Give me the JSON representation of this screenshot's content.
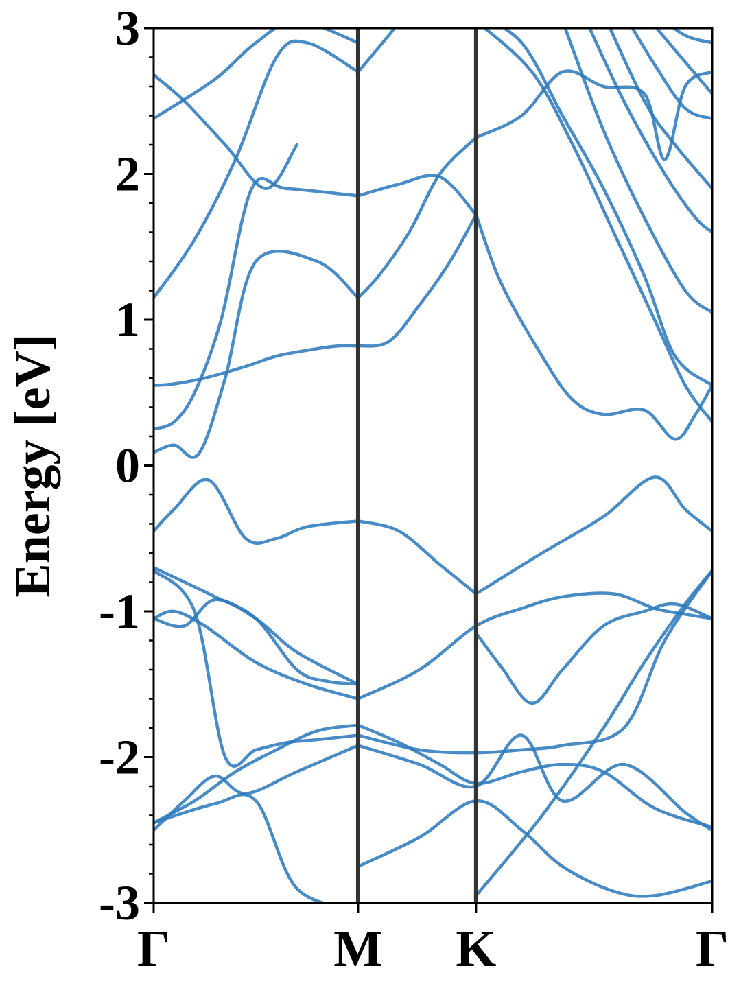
{
  "chart_data": {
    "type": "line",
    "ylabel": "Energy [eV]",
    "xlabel": "",
    "ylim": [
      -3,
      3
    ],
    "yticks": [
      "3",
      "2",
      "1",
      "0",
      "-1",
      "-2",
      "-3"
    ],
    "ytick_values": [
      3,
      2,
      1,
      0,
      -1,
      -2,
      -3
    ],
    "minor_ytick_step": 0.2,
    "kpoint_labels": [
      "Γ",
      "M",
      "K",
      "Γ"
    ],
    "kpoint_positions": [
      0,
      1,
      1.577,
      2.732
    ],
    "grid": false,
    "colors": {
      "bands": "#2f7bbd",
      "kpath_lines": "#333333",
      "axes": "#000000"
    },
    "series": [
      {
        "x": [
          0,
          0.1,
          0.27,
          0.45,
          0.6,
          0.75,
          1.0
        ],
        "values": [
          -0.45,
          -0.3,
          -0.1,
          -0.5,
          -0.5,
          -0.42,
          -0.38
        ]
      },
      {
        "x": [
          1.0,
          1.2,
          1.4,
          1.577
        ],
        "values": [
          -0.38,
          -0.45,
          -0.68,
          -0.88
        ]
      },
      {
        "x": [
          1.577,
          1.9,
          2.2,
          2.45,
          2.6,
          2.732
        ],
        "values": [
          -0.88,
          -0.6,
          -0.35,
          -0.08,
          -0.3,
          -0.45
        ]
      },
      {
        "x": [
          0,
          0.1,
          0.25,
          0.45,
          0.6,
          0.75,
          0.9,
          1.0
        ],
        "values": [
          0.55,
          0.56,
          0.6,
          0.68,
          0.75,
          0.79,
          0.82,
          0.82
        ]
      },
      {
        "x": [
          1.0,
          1.15,
          1.3,
          1.45,
          1.577
        ],
        "values": [
          0.82,
          0.85,
          1.1,
          1.4,
          1.72
        ]
      },
      {
        "x": [
          0,
          0.1,
          0.22,
          0.35,
          0.5,
          0.8,
          1.0
        ],
        "values": [
          0.09,
          0.14,
          0.08,
          0.6,
          1.4,
          1.4,
          1.15
        ]
      },
      {
        "x": [
          0,
          0.1,
          0.2,
          0.33,
          0.48,
          0.65,
          1.0
        ],
        "values": [
          0.25,
          0.3,
          0.5,
          1.0,
          1.9,
          1.9,
          1.85
        ]
      },
      {
        "x": [
          1.0,
          1.2,
          1.4,
          1.577
        ],
        "values": [
          1.85,
          1.93,
          1.98,
          1.72
        ]
      },
      {
        "x": [
          1.0,
          1.1,
          1.25,
          1.4,
          1.577
        ],
        "values": [
          1.15,
          1.3,
          1.6,
          2.0,
          2.25
        ]
      },
      {
        "x": [
          1.577,
          1.8,
          2.0,
          2.2,
          2.4,
          2.5,
          2.6,
          2.732
        ],
        "values": [
          2.25,
          2.4,
          2.7,
          2.6,
          2.55,
          2.1,
          2.6,
          2.7
        ]
      },
      {
        "x": [
          1.577,
          1.7,
          1.9,
          2.05,
          2.2,
          2.4,
          2.55,
          2.65,
          2.732
        ],
        "values": [
          1.72,
          1.25,
          0.75,
          0.45,
          0.35,
          0.38,
          0.18,
          0.35,
          0.55
        ]
      },
      {
        "x": [
          0,
          0.3,
          0.5,
          0.7,
          0.85,
          1.0
        ],
        "values": [
          -0.7,
          -0.9,
          -1.05,
          -1.4,
          -1.48,
          -1.5
        ]
      },
      {
        "x": [
          0,
          0.15,
          0.3,
          0.5,
          0.7,
          1.0
        ],
        "values": [
          -1.05,
          -1.1,
          -0.92,
          -1.05,
          -1.28,
          -1.5
        ]
      },
      {
        "x": [
          0,
          0.1,
          0.25,
          0.5,
          0.75,
          1.0
        ],
        "values": [
          -1.05,
          -1.0,
          -1.1,
          -1.35,
          -1.5,
          -1.6
        ]
      },
      {
        "x": [
          1.0,
          1.3,
          1.577,
          1.8,
          2.0,
          2.25,
          2.45,
          2.6,
          2.732
        ],
        "values": [
          -1.6,
          -1.4,
          -1.1,
          -0.98,
          -0.9,
          -0.88,
          -0.98,
          -1.02,
          -1.05
        ]
      },
      {
        "x": [
          1.577,
          1.7,
          1.85,
          2.0,
          2.2,
          2.4,
          2.55,
          2.732
        ],
        "values": [
          -1.15,
          -1.38,
          -1.63,
          -1.4,
          -1.1,
          -1.0,
          -0.95,
          -1.05
        ]
      },
      {
        "x": [
          0,
          0.2,
          0.35,
          0.5,
          0.65,
          0.8,
          1.0
        ],
        "values": [
          -0.72,
          -1.0,
          -2.0,
          -1.95,
          -1.9,
          -1.88,
          -1.85
        ]
      },
      {
        "x": [
          1.0,
          1.3,
          1.577,
          1.8,
          2.0,
          2.3,
          2.5,
          2.732
        ],
        "values": [
          -1.85,
          -1.95,
          -1.97,
          -1.95,
          -1.92,
          -1.8,
          -1.2,
          -0.72
        ]
      },
      {
        "x": [
          0,
          0.2,
          0.4,
          0.6,
          0.8,
          1.0
        ],
        "values": [
          -2.45,
          -2.3,
          -2.1,
          -1.95,
          -1.82,
          -1.78
        ]
      },
      {
        "x": [
          1.0,
          1.2,
          1.4,
          1.577,
          1.8,
          2.0,
          2.2,
          2.45,
          2.732
        ],
        "values": [
          -1.78,
          -1.9,
          -2.05,
          -2.18,
          -2.1,
          -2.05,
          -2.1,
          -2.35,
          -2.48
        ]
      },
      {
        "x": [
          0,
          0.15,
          0.3,
          0.45,
          0.7,
          1.0
        ],
        "values": [
          -2.5,
          -2.3,
          -2.13,
          -2.25,
          -2.1,
          -1.92
        ]
      },
      {
        "x": [
          1.0,
          1.3,
          1.577,
          1.8,
          2.0,
          2.3,
          2.6,
          2.732
        ],
        "values": [
          -1.92,
          -2.05,
          -2.2,
          -1.85,
          -2.3,
          -2.05,
          -2.38,
          -2.5
        ]
      },
      {
        "x": [
          0,
          0.3,
          0.5,
          0.7,
          1.0
        ],
        "values": [
          -2.45,
          -2.32,
          -2.3,
          -2.9,
          -3.05
        ]
      },
      {
        "x": [
          1.0,
          1.3,
          1.577,
          1.8,
          2.0,
          2.25,
          2.45,
          2.732
        ],
        "values": [
          -2.75,
          -2.55,
          -2.3,
          -2.5,
          -2.75,
          -2.92,
          -2.95,
          -2.85
        ]
      },
      {
        "x": [
          1.577,
          1.9,
          2.2,
          2.4,
          2.6,
          2.732
        ],
        "values": [
          -2.95,
          -2.4,
          -1.8,
          -1.35,
          -0.95,
          -0.72
        ]
      },
      {
        "x": [
          0,
          0.2,
          0.4,
          0.6,
          0.75,
          1.0
        ],
        "values": [
          1.15,
          1.55,
          2.1,
          2.8,
          2.9,
          2.7
        ]
      },
      {
        "x": [
          1.0,
          1.15,
          1.3,
          1.45,
          1.577
        ],
        "values": [
          2.7,
          2.95,
          3.2,
          3.1,
          3.05
        ]
      },
      {
        "x": [
          0,
          0.3,
          0.5,
          0.7,
          1.0
        ],
        "values": [
          2.38,
          2.65,
          2.9,
          3.05,
          2.9
        ]
      },
      {
        "x": [
          0,
          0.15,
          0.35,
          0.55,
          0.7
        ],
        "values": [
          2.68,
          2.5,
          2.2,
          1.9,
          2.2
        ]
      },
      {
        "x": [
          1.577,
          1.8,
          2.0,
          2.2,
          2.4,
          2.55,
          2.732
        ],
        "values": [
          3.1,
          2.9,
          2.4,
          1.9,
          1.3,
          0.75,
          0.55
        ]
      },
      {
        "x": [
          1.577,
          1.85,
          2.05,
          2.25,
          2.45,
          2.6,
          2.732
        ],
        "values": [
          3.05,
          2.7,
          2.2,
          1.6,
          1.0,
          0.55,
          0.3
        ]
      },
      {
        "x": [
          2.0,
          2.2,
          2.4,
          2.6,
          2.732
        ],
        "values": [
          3.05,
          2.3,
          1.7,
          1.2,
          1.05
        ]
      },
      {
        "x": [
          2.1,
          2.3,
          2.5,
          2.65,
          2.732
        ],
        "values": [
          3.1,
          2.5,
          2.0,
          1.7,
          1.6
        ]
      },
      {
        "x": [
          2.2,
          2.4,
          2.55,
          2.732
        ],
        "values": [
          3.1,
          2.5,
          2.2,
          1.9
        ]
      },
      {
        "x": [
          2.3,
          2.45,
          2.6,
          2.732
        ],
        "values": [
          3.1,
          2.75,
          2.45,
          2.38
        ]
      },
      {
        "x": [
          2.4,
          2.55,
          2.732
        ],
        "values": [
          3.1,
          2.85,
          2.55
        ]
      },
      {
        "x": [
          2.45,
          2.6,
          2.732
        ],
        "values": [
          3.1,
          2.95,
          2.9
        ]
      }
    ]
  }
}
